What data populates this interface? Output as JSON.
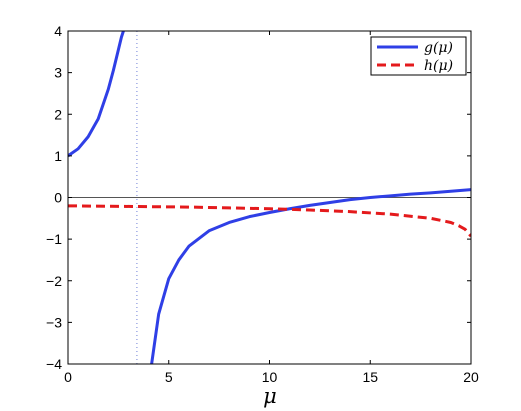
{
  "chart_data": {
    "type": "line",
    "title": "",
    "xlabel": "μ",
    "ylabel": "",
    "xlim": [
      0,
      20
    ],
    "ylim": [
      -4,
      4
    ],
    "xticks": [
      0,
      5,
      10,
      15,
      20
    ],
    "yticks": [
      4,
      3,
      2,
      1,
      0,
      -1,
      -2,
      -3,
      -4
    ],
    "xtick_labels": [
      "0",
      "5",
      "10",
      "15",
      "20"
    ],
    "ytick_labels": [
      "4",
      "3",
      "2",
      "1",
      "0",
      "−1",
      "−2",
      "−3",
      "−4"
    ],
    "grid": false,
    "legend_position": "top-right",
    "reference_lines": [
      {
        "orientation": "horizontal",
        "value": 0,
        "style": "solid",
        "color": "#555555"
      },
      {
        "orientation": "vertical",
        "value": 3.42,
        "style": "dotted",
        "color": "#6f7fd8"
      }
    ],
    "series": [
      {
        "name": "g(μ)",
        "color": "#2f3fe6",
        "style": "solid",
        "branches": [
          {
            "x": [
              0,
              0.5,
              1.0,
              1.5,
              2.0,
              2.25,
              2.5,
              2.65,
              2.75
            ],
            "y": [
              1.0,
              1.17,
              1.46,
              1.89,
              2.6,
              3.05,
              3.55,
              3.85,
              4.0
            ]
          },
          {
            "x": [
              4.15,
              4.5,
              5,
              5.5,
              6,
              7,
              8,
              9,
              10,
              11,
              12,
              13,
              14,
              15,
              16,
              17,
              18,
              19,
              20
            ],
            "y": [
              -4.0,
              -2.8,
              -1.95,
              -1.5,
              -1.17,
              -0.8,
              -0.6,
              -0.46,
              -0.36,
              -0.27,
              -0.19,
              -0.12,
              -0.05,
              0.0,
              0.04,
              0.08,
              0.11,
              0.15,
              0.19
            ]
          }
        ]
      },
      {
        "name": "h(μ)",
        "color": "#e41a1c",
        "style": "dashed",
        "branches": [
          {
            "x": [
              0,
              2,
              4,
              6,
              8,
              10,
              12,
              14,
              16,
              17,
              18,
              18.5,
              19,
              19.4,
              19.7,
              20
            ],
            "y": [
              -0.2,
              -0.21,
              -0.22,
              -0.23,
              -0.25,
              -0.27,
              -0.3,
              -0.34,
              -0.4,
              -0.45,
              -0.5,
              -0.55,
              -0.6,
              -0.68,
              -0.76,
              -0.93
            ]
          }
        ]
      }
    ]
  }
}
